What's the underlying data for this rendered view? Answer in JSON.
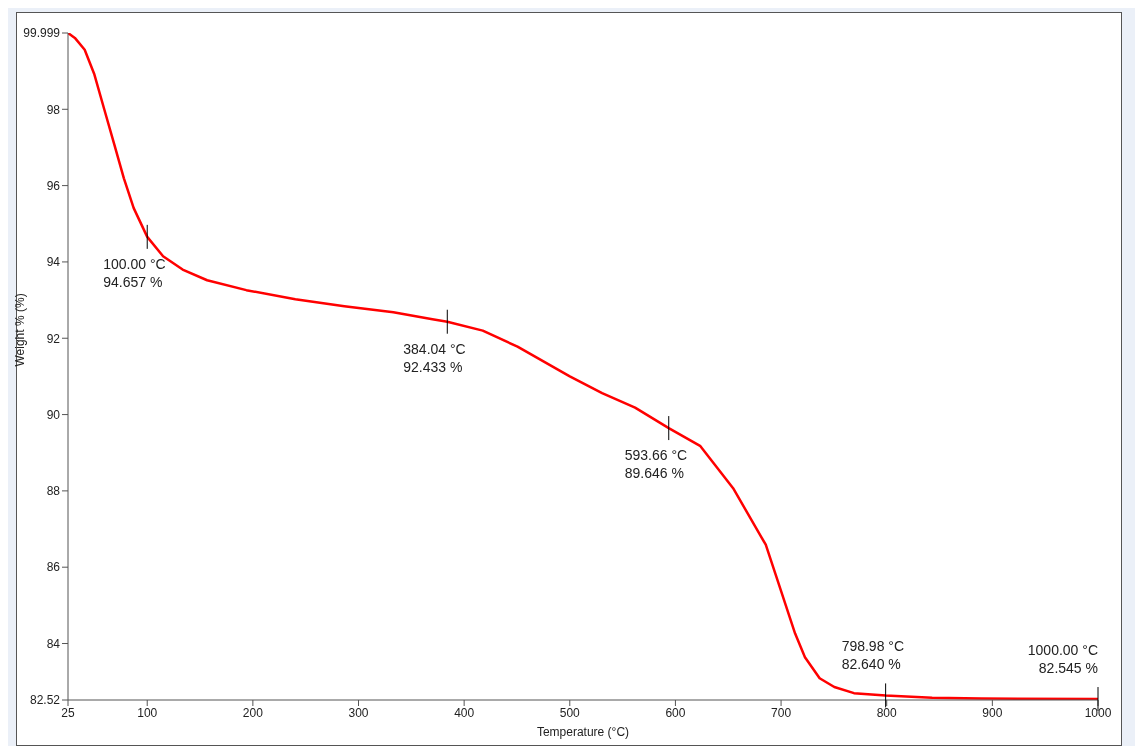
{
  "chart_data": {
    "type": "line",
    "xlabel": "Temperature (°C)",
    "ylabel": "Weight % (%)",
    "x": [
      25,
      31.5,
      40.8,
      50,
      59.3,
      68.6,
      77.9,
      87.2,
      100,
      115,
      133.5,
      156.7,
      193.8,
      240.2,
      286.6,
      333,
      370,
      384.04,
      417.6,
      450.5,
      500,
      530.6,
      561.8,
      593.66,
      623.3,
      654.6,
      685.5,
      694.8,
      704,
      713.3,
      722.6,
      736.5,
      750.4,
      769,
      798.98,
      843,
      889.6,
      1000
    ],
    "series": [
      {
        "color": "#ff0000",
        "values": [
          99.999,
          99.87,
          99.56,
          98.91,
          98.0,
          97.1,
          96.19,
          95.41,
          94.657,
          94.15,
          93.8,
          93.52,
          93.26,
          93.02,
          92.84,
          92.68,
          92.5,
          92.433,
          92.2,
          91.78,
          91.0,
          90.56,
          90.18,
          89.646,
          89.18,
          88.07,
          86.59,
          85.81,
          85.04,
          84.26,
          83.64,
          83.09,
          82.86,
          82.7,
          82.64,
          82.58,
          82.56,
          82.545
        ]
      }
    ],
    "xlim": [
      25,
      1000
    ],
    "xticks": [
      25,
      100,
      200,
      300,
      400,
      500,
      600,
      700,
      800,
      900,
      1000
    ],
    "ylim": [
      82.52,
      99.999
    ],
    "yticks": [
      82.52,
      84,
      86,
      88,
      90,
      92,
      94,
      96,
      98,
      99.999
    ],
    "grid": false,
    "legend": false,
    "marker": "none",
    "line_style": "solid",
    "annotations": [
      {
        "text": "100.00 °C\n94.657 %",
        "x": 100,
        "y": 94.657
      },
      {
        "text": "384.04 °C\n92.433 %",
        "x": 384.04,
        "y": 92.433
      },
      {
        "text": "593.66 °C\n89.646 %",
        "x": 593.66,
        "y": 89.646
      },
      {
        "text": "798.98 °C\n82.640 %",
        "x": 798.98,
        "y": 82.64
      },
      {
        "text": "1000.00 °C\n82.545 %",
        "x": 1000,
        "y": 82.545
      }
    ]
  }
}
